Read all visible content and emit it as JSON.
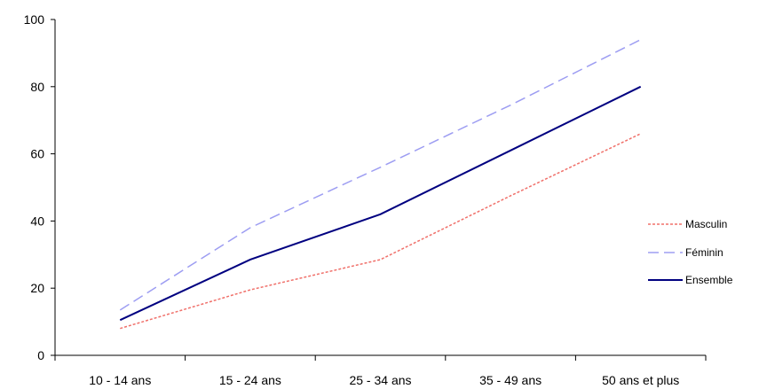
{
  "chart_data": {
    "type": "line",
    "categories": [
      "10 - 14 ans",
      "15 - 24 ans",
      "25 - 34 ans",
      "35 - 49 ans",
      "50 ans et plus"
    ],
    "ylim": [
      0,
      100
    ],
    "yticks": [
      0,
      20,
      40,
      60,
      80,
      100
    ],
    "grid": false,
    "legend_position": "right",
    "series": [
      {
        "name": "Masculin",
        "values": [
          8,
          19.5,
          28.5,
          47.5,
          66
        ],
        "color": "#f0706a",
        "style": "dotted"
      },
      {
        "name": "Féminin",
        "values": [
          13.5,
          38,
          56,
          74.5,
          94
        ],
        "color": "#9d9df2",
        "style": "dashed"
      },
      {
        "name": "Ensemble",
        "values": [
          10.5,
          28.5,
          42,
          61,
          80
        ],
        "color": "#000080",
        "style": "solid"
      }
    ]
  }
}
